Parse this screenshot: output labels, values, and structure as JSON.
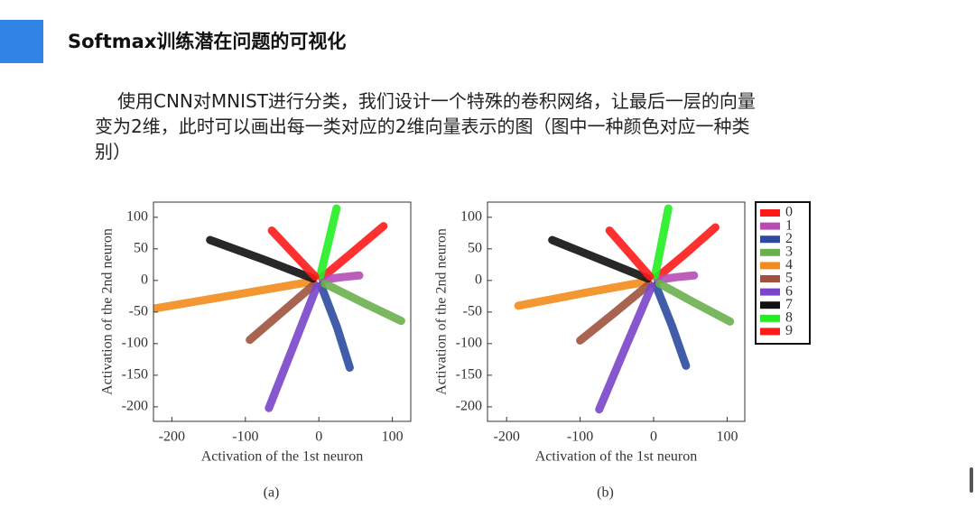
{
  "header": {
    "title": "Softmax训练潜在问题的可视化"
  },
  "text": "使用CNN对MNIST进行分类，我们设计一个特殊的卷积网络，让最后一层的向量变为2维，此时可以画出每一类对应的2维向量表示的图（图中一种颜色对应一种类别）",
  "chart_data": [
    {
      "type": "scatter",
      "caption": "(a)",
      "xlabel": "Activation of the 1st neuron",
      "ylabel": "Activation of the 2nd neuron",
      "xlim": [
        -225,
        125
      ],
      "ylim": [
        -223,
        124
      ],
      "xticks": [
        -200,
        -100,
        0,
        100
      ],
      "yticks": [
        100,
        50,
        0,
        -50,
        -100,
        -150,
        -200
      ],
      "legend": false,
      "series": [
        {
          "color": "#ff1a1a",
          "x": [
            5,
            45,
            88
          ],
          "y": [
            5,
            44,
            86
          ]
        },
        {
          "color": "#b54db5",
          "x": [
            5,
            30,
            55
          ],
          "y": [
            1,
            5,
            8
          ]
        },
        {
          "color": "#2c4ba0",
          "x": [
            3,
            25,
            42
          ],
          "y": [
            -8,
            -75,
            -138
          ]
        },
        {
          "color": "#6ab04c",
          "x": [
            8,
            60,
            112
          ],
          "y": [
            -5,
            -35,
            -64
          ]
        },
        {
          "color": "#f28c1c",
          "x": [
            -10,
            -110,
            -222
          ],
          "y": [
            -2,
            -22,
            -44
          ]
        },
        {
          "color": "#a0523e",
          "x": [
            -6,
            -50,
            -94
          ],
          "y": [
            -6,
            -50,
            -94
          ]
        },
        {
          "color": "#7a45c8",
          "x": [
            -3,
            -35,
            -68
          ],
          "y": [
            -10,
            -105,
            -202
          ]
        },
        {
          "color": "#111111",
          "x": [
            -8,
            -75,
            -148
          ],
          "y": [
            3,
            33,
            64
          ]
        },
        {
          "color": "#22ee22",
          "x": [
            2,
            13,
            24
          ],
          "y": [
            8,
            60,
            114
          ]
        },
        {
          "color": "#ff1a1a",
          "x": [
            -5,
            -35,
            -64
          ],
          "y": [
            6,
            43,
            79
          ]
        }
      ]
    },
    {
      "type": "scatter",
      "caption": "(b)",
      "xlabel": "Activation of the 1st neuron",
      "ylabel": "Activation of the 2nd neuron",
      "xlim": [
        -226,
        124
      ],
      "ylim": [
        -223,
        124
      ],
      "xticks": [
        -200,
        -100,
        0,
        100
      ],
      "yticks": [
        100,
        50,
        0,
        -50,
        -100,
        -150,
        -200
      ],
      "legend": "right",
      "series": [
        {
          "name": "0",
          "color": "#ff1a1a",
          "x": [
            5,
            45,
            84
          ],
          "y": [
            5,
            44,
            84
          ]
        },
        {
          "name": "1",
          "color": "#b54db5",
          "x": [
            5,
            30,
            55
          ],
          "y": [
            1,
            5,
            8
          ]
        },
        {
          "name": "2",
          "color": "#2c4ba0",
          "x": [
            3,
            25,
            44
          ],
          "y": [
            -8,
            -72,
            -135
          ]
        },
        {
          "name": "3",
          "color": "#6ab04c",
          "x": [
            8,
            55,
            104
          ],
          "y": [
            -5,
            -35,
            -65
          ]
        },
        {
          "name": "4",
          "color": "#f28c1c",
          "x": [
            -10,
            -95,
            -184
          ],
          "y": [
            -2,
            -20,
            -40
          ]
        },
        {
          "name": "5",
          "color": "#a0523e",
          "x": [
            -6,
            -52,
            -100
          ],
          "y": [
            -6,
            -50,
            -95
          ]
        },
        {
          "name": "6",
          "color": "#7a45c8",
          "x": [
            -3,
            -38,
            -74
          ],
          "y": [
            -10,
            -105,
            -204
          ]
        },
        {
          "name": "7",
          "color": "#111111",
          "x": [
            -8,
            -72,
            -138
          ],
          "y": [
            3,
            33,
            64
          ]
        },
        {
          "name": "8",
          "color": "#22ee22",
          "x": [
            2,
            11,
            20
          ],
          "y": [
            8,
            60,
            114
          ]
        },
        {
          "name": "9",
          "color": "#ff1a1a",
          "x": [
            -5,
            -32,
            -60
          ],
          "y": [
            6,
            42,
            79
          ]
        }
      ]
    }
  ]
}
